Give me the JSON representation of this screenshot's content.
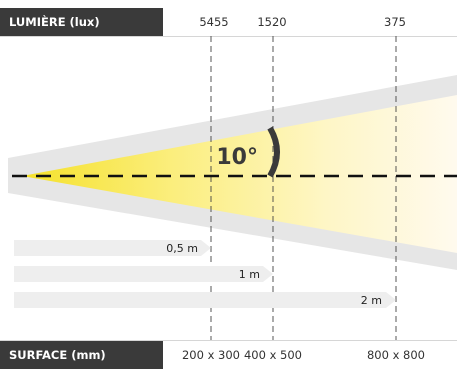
{
  "light": {
    "title": "LUMIÈRE (lux)",
    "values": [
      "5455",
      "1520",
      "375"
    ]
  },
  "surface": {
    "title": "SURFACE (mm)",
    "values": [
      "200 x 300",
      "400 x 500",
      "800 x 800"
    ]
  },
  "beam": {
    "angle_label": "10°"
  },
  "distances": [
    "0,5 m",
    "1 m",
    "2 m"
  ],
  "colors": {
    "header_bg": "#3a3a3a",
    "beam_yellow": "#f5e12a",
    "cone_gray": "#e6e6e6",
    "arrow_gray": "#eeeeee",
    "dashed_line": "#111111"
  }
}
